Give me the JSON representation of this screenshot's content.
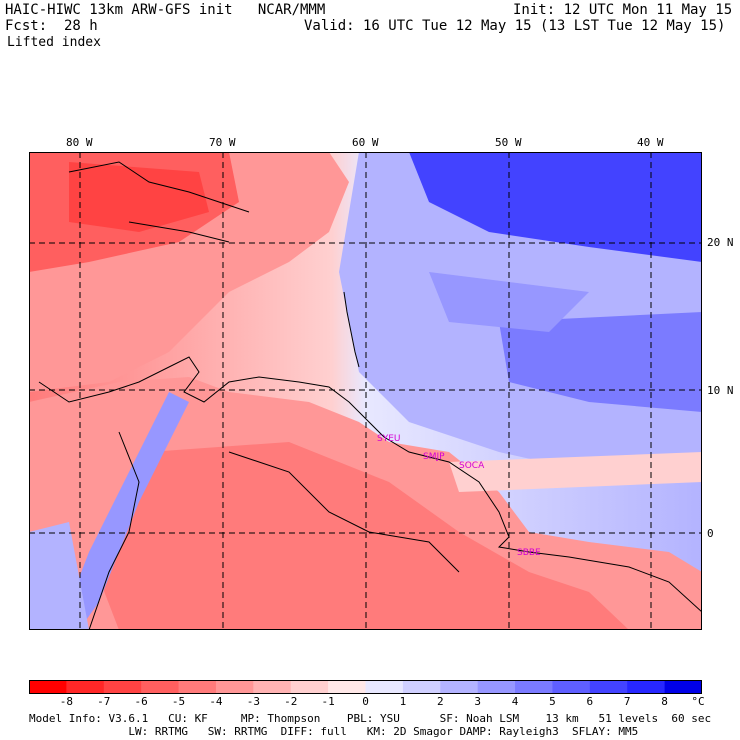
{
  "header": {
    "title": "HAIC-HIWC 13km ARW-GFS init   NCAR/MMM",
    "init": "Init: 12 UTC Mon 11 May 15",
    "fcst_label": "Fcst:",
    "fcst_value": "28 h",
    "valid": "Valid: 16 UTC Tue 12 May 15 (13 LST Tue 12 May 15)",
    "field": "Lifted index"
  },
  "map": {
    "lon_labels": [
      "80 W",
      "70 W",
      "60 W",
      "50 W",
      "40 W"
    ],
    "lat_labels": [
      "20 N",
      "10 N",
      "0"
    ],
    "stations": [
      "SYEU",
      "SMJP",
      "SOCA",
      "SBBE"
    ],
    "station_color": "#d400d4"
  },
  "colorbar": {
    "labels": [
      "-8",
      "-7",
      "-6",
      "-5",
      "-4",
      "-3",
      "-2",
      "-1",
      "0",
      "1",
      "2",
      "3",
      "4",
      "5",
      "6",
      "7",
      "8"
    ],
    "unit": "°C",
    "colors": [
      "#ff0000",
      "#ff2727",
      "#ff4343",
      "#ff5f5f",
      "#ff7b7b",
      "#ff9797",
      "#ffb3b3",
      "#ffd0d0",
      "#ffe8e8",
      "#e8e8ff",
      "#d0d0ff",
      "#b3b3ff",
      "#9797ff",
      "#7b7bff",
      "#5f5fff",
      "#4343ff",
      "#2727ff",
      "#0000e8"
    ]
  },
  "model_info": {
    "line1": "Model Info: V3.6.1   CU: KF     MP: Thompson    PBL: YSU      SF: Noah LSM    13 km   51 levels  60 sec",
    "line2": "               LW: RRTMG   SW: RRTMG  DIFF: full   KM: 2D Smagor DAMP: Rayleigh3  SFLAY: MM5"
  }
}
